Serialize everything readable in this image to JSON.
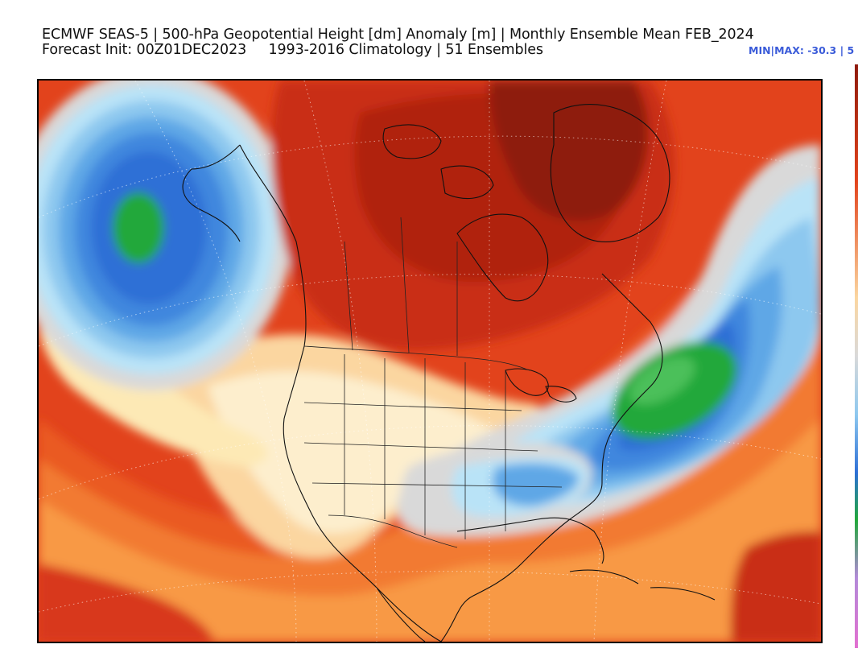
{
  "header": {
    "title_line1": "ECMWF SEAS-5 | 500-hPa Geopotential Height [dm] Anomaly [m] | Monthly Ensemble Mean FEB_2024",
    "title_line2": "Forecast Init: 00Z01DEC2023     1993-2016 Climatology | 51 Ensembles",
    "minmax": "MIN|MAX: -30.3 | 5"
  },
  "map": {
    "field": "500-hPa Geopotential Height Anomaly",
    "region": "North America",
    "anomaly_centers": [
      {
        "sign": "negative",
        "location": "Gulf of Alaska / NE Pacific"
      },
      {
        "sign": "negative",
        "location": "Western Atlantic off US East Coast"
      },
      {
        "sign": "positive",
        "location": "Canadian Arctic / Greenland"
      }
    ]
  },
  "colors": {
    "strong_positive": "#8e1a0c",
    "positive": "#e2431c",
    "weak_positive": "#fbd6a0",
    "neutral": "#d9d9d9",
    "weak_negative": "#b9e3f7",
    "negative": "#2d6fd6",
    "strong_negative": "#21a83a"
  }
}
